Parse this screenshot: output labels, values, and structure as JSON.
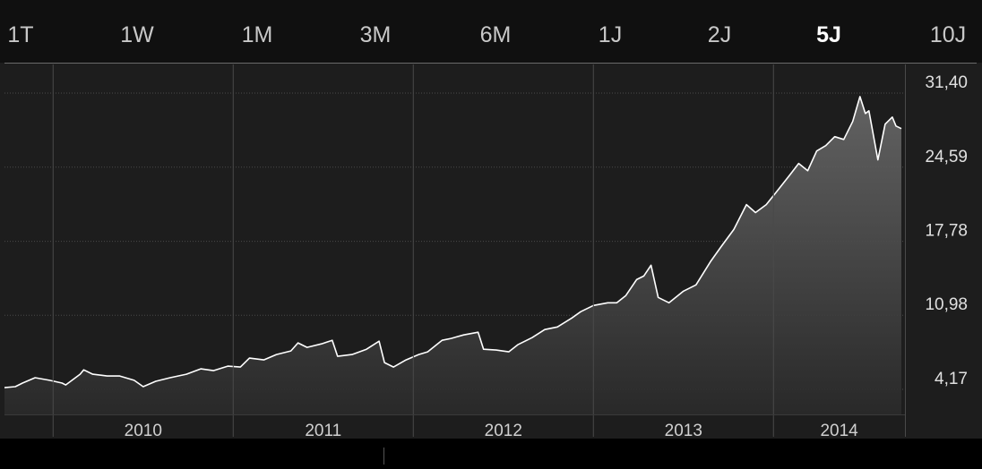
{
  "range_tabs": [
    "1T",
    "1W",
    "1M",
    "3M",
    "6M",
    "1J",
    "2J",
    "5J",
    "10J"
  ],
  "chart_data": {
    "type": "area",
    "color": "#ffffff",
    "grid": true,
    "xlim": [
      2009.73,
      2014.73
    ],
    "ylim": [
      1.87,
      34.03
    ],
    "xticks": [
      {
        "value": 2010.5,
        "label": "2010"
      },
      {
        "value": 2011.5,
        "label": "2011"
      },
      {
        "value": 2012.5,
        "label": "2012"
      },
      {
        "value": 2013.5,
        "label": "2013"
      },
      {
        "value": 2014.5,
        "label": "2014"
      }
    ],
    "yticks": [
      {
        "value": 4.17,
        "label": "4,17"
      },
      {
        "value": 10.98,
        "label": "10,98"
      },
      {
        "value": 17.78,
        "label": "17,78"
      },
      {
        "value": 24.59,
        "label": "24,59"
      },
      {
        "value": 31.4,
        "label": "31,40"
      }
    ],
    "x": [
      2009.73,
      2009.79,
      2009.83,
      2009.9,
      2009.98,
      2010.05,
      2010.07,
      2010.15,
      2010.17,
      2010.22,
      2010.3,
      2010.37,
      2010.45,
      2010.5,
      2010.57,
      2010.65,
      2010.74,
      2010.82,
      2010.89,
      2010.97,
      2011.04,
      2011.09,
      2011.17,
      2011.24,
      2011.32,
      2011.36,
      2011.41,
      2011.49,
      2011.55,
      2011.58,
      2011.66,
      2011.74,
      2011.81,
      2011.84,
      2011.89,
      2011.96,
      2012.03,
      2012.08,
      2012.16,
      2012.21,
      2012.28,
      2012.36,
      2012.39,
      2012.46,
      2012.53,
      2012.58,
      2012.66,
      2012.73,
      2012.8,
      2012.88,
      2012.93,
      2013.0,
      2013.08,
      2013.13,
      2013.18,
      2013.24,
      2013.28,
      2013.32,
      2013.36,
      2013.42,
      2013.5,
      2013.57,
      2013.65,
      2013.71,
      2013.78,
      2013.85,
      2013.9,
      2013.96,
      2014.02,
      2014.09,
      2014.14,
      2014.19,
      2014.24,
      2014.29,
      2014.34,
      2014.39,
      2014.44,
      2014.48,
      2014.51,
      2014.53,
      2014.58,
      2014.62,
      2014.66,
      2014.68,
      2014.71
    ],
    "values": [
      4.33,
      4.42,
      4.75,
      5.24,
      5.0,
      4.75,
      4.58,
      5.56,
      5.97,
      5.56,
      5.4,
      5.4,
      5.0,
      4.42,
      4.91,
      5.24,
      5.56,
      6.06,
      5.89,
      6.3,
      6.22,
      7.04,
      6.88,
      7.37,
      7.7,
      8.44,
      8.03,
      8.35,
      8.68,
      7.21,
      7.37,
      7.86,
      8.6,
      6.63,
      6.22,
      6.88,
      7.37,
      7.62,
      8.68,
      8.85,
      9.17,
      9.42,
      7.86,
      7.78,
      7.62,
      8.27,
      8.93,
      9.67,
      9.91,
      10.73,
      11.31,
      11.88,
      12.13,
      12.13,
      12.79,
      14.26,
      14.59,
      15.58,
      12.62,
      12.13,
      13.2,
      13.77,
      15.9,
      17.3,
      18.86,
      21.15,
      20.42,
      21.15,
      22.39,
      23.86,
      24.93,
      24.27,
      26.08,
      26.57,
      27.39,
      27.14,
      28.79,
      31.08,
      29.52,
      29.77,
      25.26,
      28.54,
      29.19,
      28.37,
      28.13
    ]
  }
}
